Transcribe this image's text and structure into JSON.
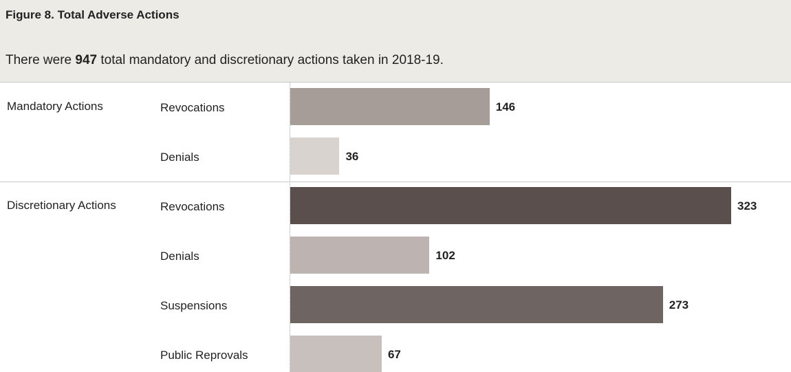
{
  "chart_data": {
    "type": "bar",
    "orientation": "horizontal",
    "title": "Figure 8. Total Adverse Actions",
    "subtitle": {
      "before": "There were",
      "highlight": "947",
      "after": "total mandatory and discretionary actions taken in 2018-19."
    },
    "groups": [
      {
        "name": "Mandatory Actions",
        "categories": [
          "Revocations",
          "Denials"
        ],
        "values": [
          146,
          36
        ],
        "colors": [
          "#a69c98",
          "#d9d3d0"
        ]
      },
      {
        "name": "Discretionary Actions",
        "categories": [
          "Revocations",
          "Denials",
          "Suspensions",
          "Public Reprovals"
        ],
        "values": [
          323,
          102,
          273,
          67
        ],
        "colors": [
          "#5a4f4c",
          "#bdb4b1",
          "#6e6461",
          "#c8c0bd"
        ]
      }
    ]
  }
}
